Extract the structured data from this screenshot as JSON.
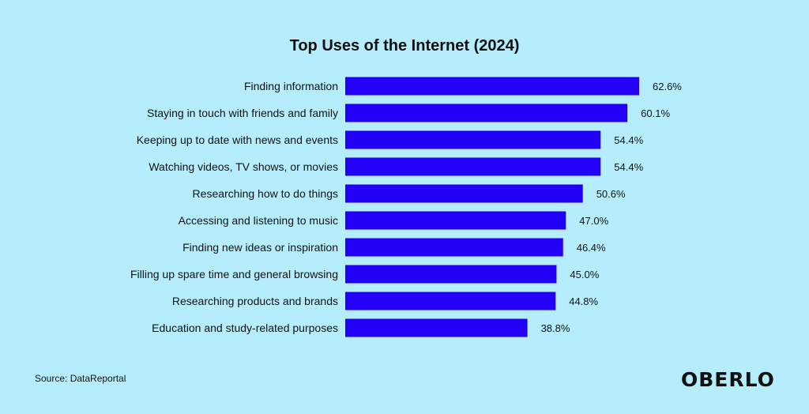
{
  "chart_data": {
    "type": "bar",
    "orientation": "horizontal",
    "title": "Top Uses of the Internet (2024)",
    "categories": [
      "Finding information",
      "Staying in touch with friends and family",
      "Keeping up to date with news and events",
      "Watching videos, TV shows, or movies",
      "Researching how to do things",
      "Accessing and listening to music",
      "Finding new ideas or inspiration",
      "Filling up spare time and general browsing",
      "Researching products and brands",
      "Education and study-related purposes"
    ],
    "values": [
      62.6,
      60.1,
      54.4,
      54.4,
      50.6,
      47.0,
      46.4,
      45.0,
      44.8,
      38.8
    ],
    "value_labels": [
      "62.6%",
      "60.1%",
      "54.4%",
      "54.4%",
      "50.6%",
      "47.0%",
      "46.4%",
      "45.0%",
      "44.8%",
      "38.8%"
    ],
    "xlabel": "",
    "ylabel": "",
    "xlim": [
      0,
      62.6
    ],
    "grid": false,
    "bar_color": "#2200f5"
  },
  "source": "Source: DataReportal",
  "logo": "OBERLO"
}
